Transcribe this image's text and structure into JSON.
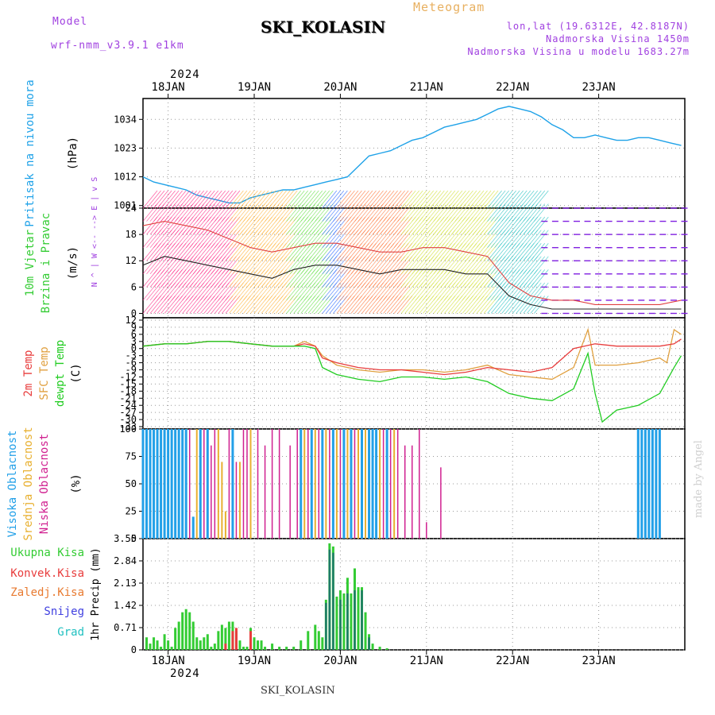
{
  "header": {
    "model_label": "Model",
    "model_name": "wrf-nmm_v3.9.1 e1km",
    "station": "SKI_KOLASIN",
    "product": "Meteogram",
    "coords": "lon,lat (19.6312E, 42.8187N)",
    "altitude": "Nadmorska Visina 1450m",
    "model_altitude": "Nadmorska Visina u modelu 1683.27m",
    "year_top": "2024",
    "year_bottom": "2024",
    "footer_station": "SKI_KOLASIN",
    "credit": "made by Angel"
  },
  "colors": {
    "pressure": "#1fa2e8",
    "temp2m": "#e83c3c",
    "sfctemp": "#e0a040",
    "dewpt": "#22cc22",
    "high_cloud": "#22a0e8",
    "mid_cloud": "#e8b030",
    "low_cloud": "#d02090",
    "total_precip": "#33cc33",
    "conv_precip": "#e83c3c",
    "frz_precip": "#e87a30",
    "snow": "#4040e0",
    "hail": "#20c0c0",
    "model_label": "#a040e0",
    "product_label": "#e8b060"
  },
  "chart_data": [
    {
      "type": "line",
      "panel": "pressure",
      "ylabel": [
        "Pritisak na nivou mora",
        "(hPa)"
      ],
      "x_ticks": [
        "18JAN",
        "19JAN",
        "20JAN",
        "21JAN",
        "22JAN",
        "23JAN"
      ],
      "y_ticks": [
        1001,
        1012,
        1023,
        1034
      ],
      "ylim": [
        1000,
        1042
      ],
      "series": [
        {
          "hours": [
            0,
            3,
            6,
            9,
            12,
            15,
            18,
            21,
            24,
            27,
            30,
            33,
            36,
            39,
            42,
            45,
            48,
            51,
            54,
            57,
            60,
            63,
            66,
            69,
            72,
            75,
            78,
            81,
            84,
            87,
            90,
            93,
            96,
            99,
            102,
            105,
            108,
            111,
            114,
            117,
            120,
            123,
            126,
            129,
            132,
            135,
            138,
            141,
            144,
            147,
            150
          ],
          "values": [
            1012,
            1010,
            1009,
            1008,
            1007,
            1005,
            1004,
            1003,
            1002,
            1002,
            1004,
            1005,
            1006,
            1007,
            1007,
            1008,
            1009,
            1010,
            1011,
            1012,
            1016,
            1020,
            1021,
            1022,
            1024,
            1026,
            1027,
            1029,
            1031,
            1032,
            1033,
            1034,
            1036,
            1038,
            1039,
            1038,
            1037,
            1035,
            1032,
            1030,
            1027,
            1027,
            1028,
            1027,
            1026,
            1026,
            1027,
            1027,
            1026,
            1025,
            1024
          ]
        }
      ]
    },
    {
      "type": "line",
      "panel": "wind",
      "ylabel": [
        "10m Vjetar",
        "Brzina i Pravac",
        "(m/s)"
      ],
      "legend": [
        "N",
        "^",
        "|",
        "W <-- --> E",
        "|",
        "v",
        "S"
      ],
      "y_ticks": [
        0,
        6,
        12,
        18,
        24
      ],
      "ylim": [
        -1,
        24
      ],
      "series": [
        {
          "name": "speed",
          "hours": [
            0,
            6,
            12,
            18,
            24,
            30,
            36,
            42,
            48,
            54,
            60,
            66,
            72,
            78,
            84,
            90,
            96,
            102,
            108,
            114,
            120,
            126,
            132,
            138,
            144,
            150
          ],
          "values": [
            11,
            13,
            12,
            11,
            10,
            9,
            8,
            10,
            11,
            11,
            10,
            9,
            10,
            10,
            10,
            9,
            9,
            4,
            2,
            1,
            1,
            1,
            1,
            1,
            1,
            1
          ]
        },
        {
          "name": "gust",
          "hours": [
            0,
            6,
            12,
            18,
            24,
            30,
            36,
            42,
            48,
            54,
            60,
            66,
            72,
            78,
            84,
            90,
            96,
            102,
            108,
            114,
            120,
            126,
            132,
            138,
            144,
            150
          ],
          "values": [
            20,
            21,
            20,
            19,
            17,
            15,
            14,
            15,
            16,
            16,
            15,
            14,
            14,
            15,
            15,
            14,
            13,
            7,
            4,
            3,
            3,
            2,
            2,
            2,
            2,
            3
          ]
        }
      ]
    },
    {
      "type": "line",
      "panel": "temperature",
      "ylabel": [
        "2m Temp",
        "SFC Temp",
        "dewpt Temp",
        "(C)"
      ],
      "y_ticks": [
        12,
        9,
        6,
        3,
        0,
        -3,
        -6,
        -9,
        -12,
        -15,
        -18,
        -21,
        -24,
        -27,
        -30,
        -33
      ],
      "y_tick_labels": [
        "12",
        "9",
        "6",
        "3",
        "0",
        "-3",
        "-6",
        "-9",
        "-12",
        "-15",
        "-18",
        "-21",
        "-24",
        "-27",
        "-30",
        "-33"
      ],
      "ylim": [
        -34,
        13
      ],
      "series": [
        {
          "name": "2m Temp",
          "hours": [
            0,
            6,
            12,
            18,
            24,
            30,
            36,
            42,
            45,
            48,
            50,
            54,
            60,
            66,
            72,
            78,
            84,
            90,
            96,
            102,
            108,
            114,
            120,
            126,
            132,
            138,
            144,
            148,
            150
          ],
          "values": [
            1,
            2,
            2,
            3,
            3,
            2,
            1,
            1,
            2,
            1,
            -4,
            -6,
            -8,
            -9,
            -9,
            -10,
            -11,
            -10,
            -8,
            -9,
            -10,
            -8,
            0,
            2,
            1,
            1,
            1,
            2,
            4
          ]
        },
        {
          "name": "SFC Temp",
          "hours": [
            0,
            6,
            12,
            18,
            24,
            30,
            36,
            42,
            45,
            48,
            50,
            54,
            60,
            66,
            72,
            78,
            84,
            90,
            96,
            102,
            108,
            114,
            120,
            124,
            126,
            132,
            138,
            144,
            146,
            148,
            150
          ],
          "values": [
            1,
            2,
            2,
            3,
            3,
            2,
            1,
            1,
            3,
            1,
            -3,
            -7,
            -9,
            -10,
            -9,
            -9,
            -10,
            -9,
            -7,
            -11,
            -12,
            -13,
            -8,
            8,
            -7,
            -7,
            -6,
            -4,
            -6,
            8,
            6
          ]
        },
        {
          "name": "dewpt Temp",
          "hours": [
            0,
            6,
            12,
            18,
            24,
            30,
            36,
            42,
            45,
            48,
            50,
            54,
            60,
            66,
            72,
            78,
            84,
            90,
            96,
            102,
            108,
            114,
            120,
            124,
            126,
            128,
            132,
            138,
            144,
            148,
            150
          ],
          "values": [
            1,
            2,
            2,
            3,
            3,
            2,
            1,
            1,
            1,
            0,
            -8,
            -11,
            -13,
            -14,
            -12,
            -12,
            -13,
            -12,
            -14,
            -19,
            -21,
            -22,
            -17,
            -2,
            -19,
            -31,
            -26,
            -24,
            -19,
            -8,
            -3
          ]
        }
      ]
    },
    {
      "type": "bar",
      "panel": "cloud",
      "ylabel": [
        "Visoka Oblacnost",
        "Srednja Oblacnost",
        "Niska Oblacnost",
        "(%)"
      ],
      "y_ticks": [
        0,
        25,
        50,
        75,
        100
      ],
      "ylim": [
        0,
        100
      ],
      "series": [
        {
          "name": "Visoka Oblacnost",
          "hours": [
            0,
            1,
            2,
            3,
            4,
            5,
            6,
            7,
            8,
            9,
            10,
            11,
            12,
            14,
            16,
            18,
            25,
            44,
            47,
            50,
            53,
            56,
            58,
            61,
            63,
            64,
            65,
            68,
            138,
            139,
            140,
            141,
            142,
            143,
            144
          ],
          "values": [
            100,
            100,
            100,
            100,
            100,
            100,
            100,
            100,
            100,
            100,
            100,
            100,
            100,
            20,
            100,
            100,
            100,
            100,
            100,
            100,
            100,
            100,
            100,
            100,
            100,
            100,
            100,
            100,
            100,
            100,
            100,
            100,
            100,
            100,
            100
          ]
        },
        {
          "name": "Srednja Oblacnost",
          "hours": [
            15,
            21,
            22,
            23,
            27,
            30,
            45,
            48,
            51,
            54,
            57,
            60,
            62,
            66,
            70
          ],
          "values": [
            100,
            100,
            70,
            25,
            70,
            100,
            100,
            100,
            100,
            100,
            100,
            100,
            100,
            100,
            100
          ]
        },
        {
          "name": "Niska Oblacnost",
          "hours": [
            13,
            17,
            19,
            20,
            24,
            26,
            28,
            29,
            32,
            34,
            36,
            38,
            41,
            43,
            46,
            49,
            52,
            55,
            59,
            67,
            69,
            71,
            73,
            75,
            77,
            79,
            83
          ],
          "values": [
            100,
            100,
            85,
            100,
            100,
            70,
            100,
            100,
            100,
            85,
            100,
            100,
            85,
            100,
            100,
            100,
            100,
            100,
            100,
            100,
            100,
            100,
            85,
            85,
            100,
            15,
            65
          ]
        }
      ]
    },
    {
      "type": "bar",
      "panel": "precip",
      "ylabel": [
        "1hr Precip (mm)"
      ],
      "legend": [
        "Ukupna Kisa",
        "Konvek.Kisa",
        "Zaledj.Kisa",
        "Snijeg",
        "Grad"
      ],
      "y_ticks": [
        0,
        0.71,
        1.42,
        2.13,
        2.84,
        3.55
      ],
      "ylim": [
        0,
        3.55
      ],
      "series": [
        {
          "name": "Ukupna Kisa",
          "hours": [
            1,
            2,
            3,
            4,
            5,
            6,
            7,
            8,
            9,
            10,
            11,
            12,
            13,
            14,
            15,
            16,
            17,
            18,
            19,
            20,
            21,
            22,
            23,
            24,
            25,
            26,
            27,
            28,
            29,
            30,
            31,
            32,
            33,
            34,
            36,
            38,
            40,
            42,
            44,
            46,
            48,
            49,
            50,
            51,
            52,
            53,
            54,
            55,
            56,
            57,
            58,
            59,
            60,
            61,
            62,
            63,
            64,
            66,
            68
          ],
          "values": [
            0.4,
            0.2,
            0.4,
            0.3,
            0.1,
            0.5,
            0.3,
            0.1,
            0.7,
            0.9,
            1.2,
            1.3,
            1.2,
            0.9,
            0.4,
            0.3,
            0.4,
            0.5,
            0.1,
            0.2,
            0.6,
            0.8,
            0.7,
            0.9,
            0.9,
            0.6,
            0.3,
            0.1,
            0.1,
            0.7,
            0.4,
            0.3,
            0.3,
            0.1,
            0.2,
            0.1,
            0.1,
            0.1,
            0.3,
            0.6,
            0.8,
            0.6,
            0.4,
            1.6,
            3.4,
            3.3,
            1.7,
            1.9,
            1.8,
            2.3,
            1.8,
            2.6,
            2.0,
            2.0,
            1.2,
            0.5,
            0.2,
            0.1,
            0.05
          ]
        },
        {
          "name": "Konvek.Kisa",
          "hours": [
            23,
            25,
            26,
            30
          ],
          "values": [
            0.2,
            0.6,
            0.7,
            0.6
          ]
        },
        {
          "name": "Snijeg",
          "hours": [
            51,
            52,
            53,
            55,
            57,
            59,
            61,
            63
          ],
          "values": [
            1.5,
            3.2,
            3.1,
            1.6,
            1.8,
            1.9,
            1.9,
            0.4
          ]
        }
      ]
    }
  ]
}
